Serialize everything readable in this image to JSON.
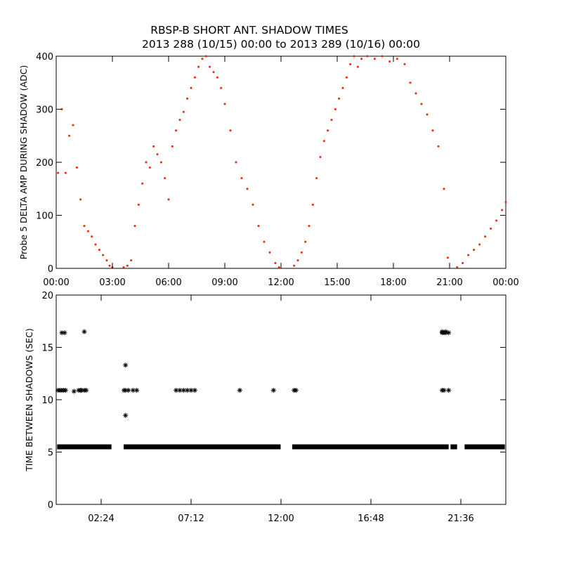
{
  "title": {
    "line1": "RBSP-B SHORT ANT. SHADOW TIMES",
    "line2": "2013 288 (10/15) 00:00 to 2013 289 (10/16) 00:00"
  },
  "colors": {
    "top_points": "#ff2200",
    "bottom_points": "#000000",
    "axes": "#000000"
  },
  "chart_data": [
    {
      "type": "scatter",
      "ylabel": "Probe 5 DELTA AMP DURING SHADOW (ADC)",
      "x_unit": "hours since 2013-10-15 00:00",
      "xlim": [
        0,
        24
      ],
      "ylim": [
        0,
        400
      ],
      "xticks": [
        0,
        3,
        6,
        9,
        12,
        15,
        18,
        21,
        24
      ],
      "xtick_labels": [
        "00:00",
        "03:00",
        "06:00",
        "09:00",
        "12:00",
        "15:00",
        "18:00",
        "21:00",
        "00:00"
      ],
      "yticks": [
        0,
        100,
        200,
        300,
        400
      ],
      "ytick_labels": [
        "0",
        "100",
        "200",
        "300",
        "400"
      ],
      "grid": false,
      "series": [
        {
          "x": [
            0.1,
            0.3,
            0.5,
            0.7,
            0.9,
            1.1,
            1.3,
            1.5,
            1.7,
            1.9,
            2.1,
            2.3,
            2.5,
            2.7,
            2.85,
            3.0,
            3.6,
            3.8,
            4.0,
            4.2,
            4.4,
            4.6,
            4.8,
            5.0,
            5.2,
            5.4,
            5.6,
            5.8,
            6.0,
            6.2,
            6.4,
            6.6,
            6.8,
            7.0,
            7.2,
            7.4,
            7.6,
            7.8,
            8.0,
            8.2,
            8.4,
            8.6,
            8.8,
            9.0,
            9.3,
            9.6,
            9.9,
            10.2,
            10.5,
            10.8,
            11.1,
            11.4,
            11.7,
            11.9,
            12.7,
            12.9,
            13.1,
            13.3,
            13.5,
            13.7,
            13.9,
            14.1,
            14.3,
            14.5,
            14.7,
            14.9,
            15.1,
            15.3,
            15.5,
            15.7,
            15.9,
            16.1,
            16.3,
            16.6,
            17.0,
            17.4,
            17.8,
            18.2,
            18.6,
            18.9,
            19.2,
            19.5,
            19.8,
            20.1,
            20.4,
            20.7,
            20.9,
            21.4,
            21.7,
            22.0,
            22.3,
            22.6,
            22.9,
            23.2,
            23.5,
            23.8,
            24.0
          ],
          "y": [
            180,
            300,
            180,
            250,
            270,
            190,
            130,
            80,
            70,
            60,
            45,
            35,
            25,
            15,
            5,
            2,
            2,
            5,
            15,
            80,
            120,
            160,
            200,
            190,
            230,
            215,
            200,
            170,
            130,
            230,
            260,
            280,
            295,
            320,
            340,
            360,
            380,
            395,
            400,
            380,
            370,
            360,
            340,
            310,
            260,
            200,
            170,
            150,
            120,
            80,
            50,
            30,
            10,
            2,
            5,
            15,
            30,
            50,
            80,
            120,
            170,
            210,
            240,
            260,
            280,
            300,
            320,
            340,
            360,
            385,
            400,
            380,
            395,
            400,
            395,
            400,
            390,
            395,
            385,
            350,
            330,
            310,
            290,
            260,
            230,
            150,
            20,
            2,
            10,
            25,
            35,
            45,
            60,
            75,
            90,
            110,
            125
          ]
        }
      ]
    },
    {
      "type": "scatter",
      "ylabel": "TIME BETWEEN SHADOWS (SEC)",
      "x_unit": "hours since 2013-10-15 00:00",
      "xlim": [
        0,
        24
      ],
      "ylim": [
        0,
        20
      ],
      "xticks": [
        2.4,
        7.2,
        12.0,
        16.8,
        21.6
      ],
      "xtick_labels": [
        "02:24",
        "07:12",
        "12:00",
        "16:48",
        "21:36"
      ],
      "yticks": [
        0,
        5,
        10,
        15,
        20
      ],
      "ytick_labels": [
        "0",
        "5",
        "10",
        "15",
        "20"
      ],
      "grid": false,
      "marker": "asterisk",
      "baseline_segments": [
        {
          "x_start": 0.05,
          "x_end": 2.95,
          "y": 5.5
        },
        {
          "x_start": 3.6,
          "x_end": 11.98,
          "y": 5.5
        },
        {
          "x_start": 12.6,
          "x_end": 20.95,
          "y": 5.5
        },
        {
          "x_start": 21.05,
          "x_end": 21.4,
          "y": 5.5
        },
        {
          "x_start": 21.8,
          "x_end": 23.95,
          "y": 5.5
        }
      ],
      "series": [
        {
          "x": [
            0.1,
            0.2,
            0.3,
            0.4,
            0.5,
            0.95,
            1.2,
            1.35,
            1.5,
            1.6,
            1.3,
            0.3,
            0.45,
            1.5,
            3.62,
            3.7,
            3.85,
            4.1,
            4.3,
            3.7,
            3.7,
            6.4,
            6.6,
            6.8,
            7.0,
            7.2,
            7.4,
            9.8,
            11.6,
            12.7,
            12.8,
            20.6,
            20.7,
            20.8,
            20.95,
            20.6,
            20.7,
            20.95,
            20.6,
            20.8
          ],
          "y": [
            10.9,
            10.9,
            10.9,
            10.9,
            10.9,
            10.8,
            10.9,
            10.9,
            10.9,
            10.9,
            10.9,
            16.4,
            16.4,
            16.5,
            10.9,
            10.9,
            10.9,
            10.9,
            10.9,
            13.3,
            8.5,
            10.9,
            10.9,
            10.9,
            10.9,
            10.9,
            10.9,
            10.9,
            10.9,
            10.9,
            10.9,
            16.4,
            16.4,
            16.4,
            16.4,
            10.9,
            10.9,
            10.9,
            16.5,
            16.5
          ]
        }
      ]
    }
  ]
}
